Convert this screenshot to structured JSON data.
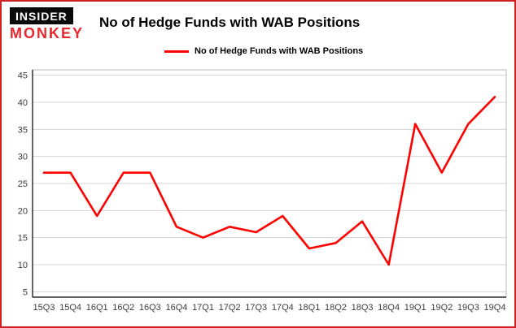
{
  "page": {
    "border_color": "#cc2222",
    "background": "#ffffff"
  },
  "header": {
    "logo_line1": "INSIDER",
    "logo_line2": "MONKEY",
    "title": "No of Hedge Funds with WAB Positions"
  },
  "legend": {
    "label": "No of Hedge Funds with WAB Positions",
    "color": "#ff0000"
  },
  "chart_data": {
    "type": "line",
    "title": "No of Hedge Funds with WAB Positions",
    "categories": [
      "15Q3",
      "15Q4",
      "16Q1",
      "16Q2",
      "16Q3",
      "16Q4",
      "17Q1",
      "17Q2",
      "17Q3",
      "17Q4",
      "18Q1",
      "18Q2",
      "18Q3",
      "18Q4",
      "19Q1",
      "19Q2",
      "19Q3",
      "19Q4"
    ],
    "values": [
      27,
      27,
      19,
      27,
      27,
      17,
      15,
      17,
      16,
      19,
      13,
      14,
      18,
      10,
      36,
      27,
      36,
      41
    ],
    "series_color": "#ff0000",
    "ylim": [
      4,
      46
    ],
    "yticks": [
      5,
      10,
      15,
      20,
      25,
      30,
      35,
      40,
      45
    ],
    "grid": true,
    "grid_color": "#d4d4d4",
    "axis_color": "#000000",
    "tick_label_color": "#3c3c3c",
    "legend_position": "top"
  }
}
